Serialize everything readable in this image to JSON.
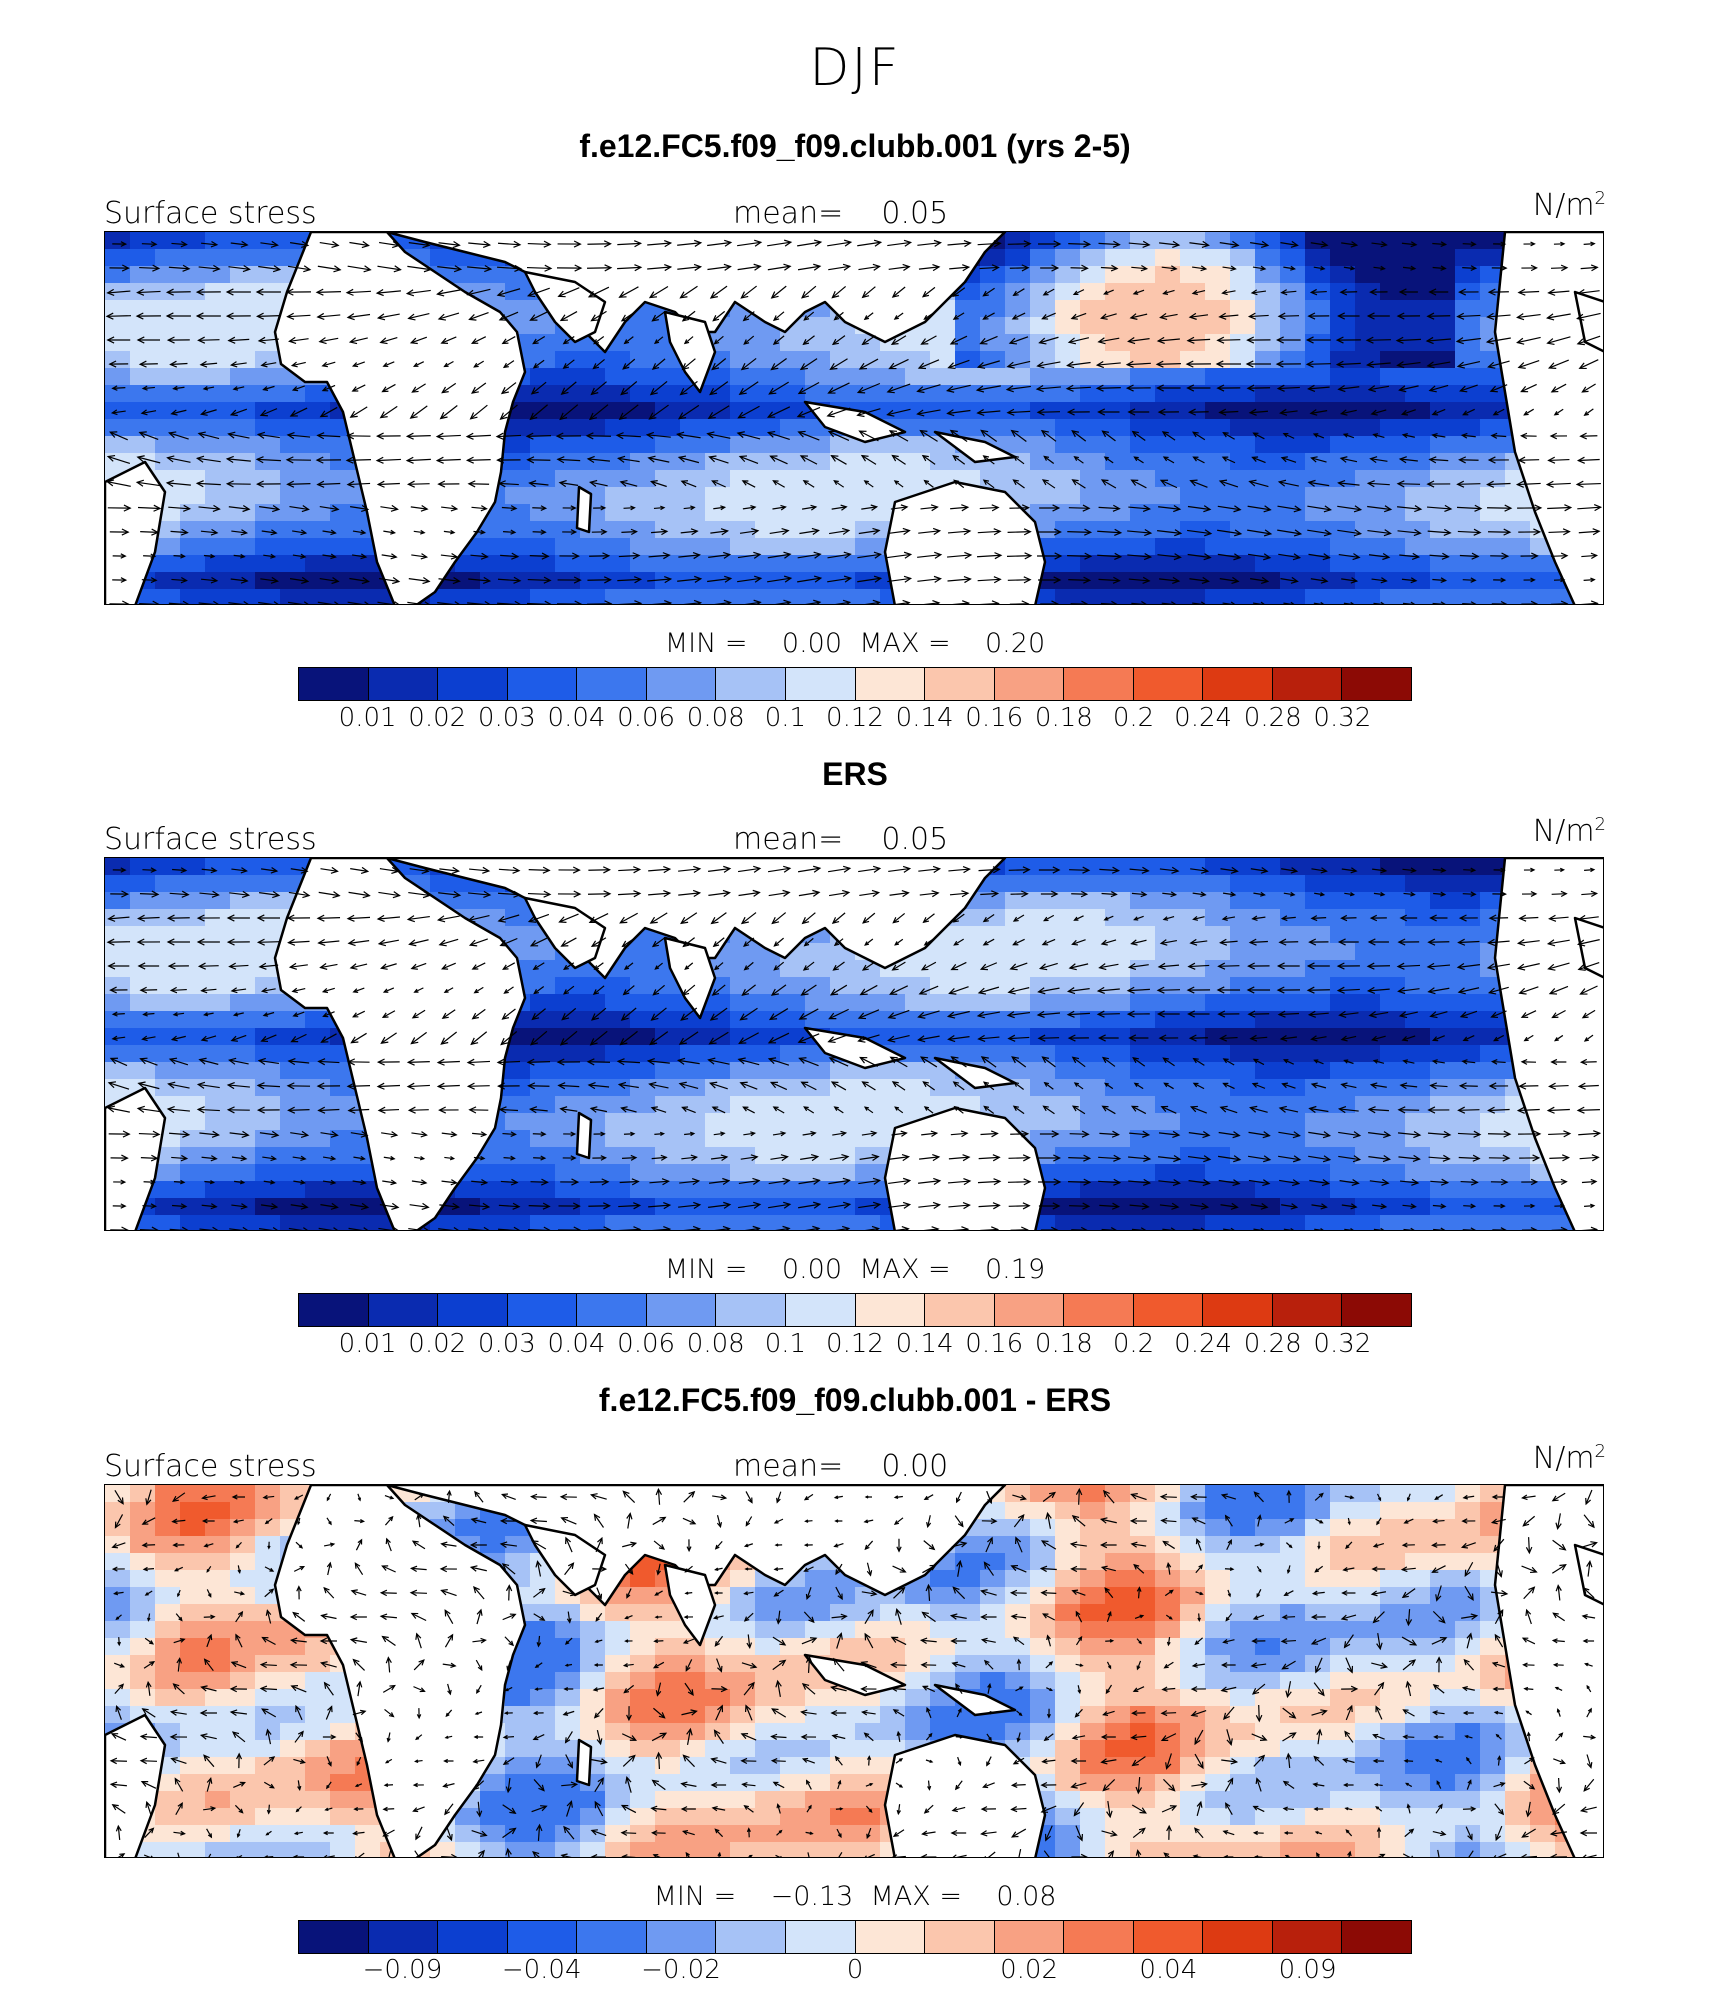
{
  "title": "DJF",
  "palette": [
    "#08137a",
    "#0a2bb0",
    "#0c3fd0",
    "#1e5ce8",
    "#3c77ee",
    "#6f9af2",
    "#a6c2f6",
    "#d3e4fa",
    "#fde6d6",
    "#fbc6ad",
    "#f8a183",
    "#f57a54",
    "#f05a2d",
    "#dd3a12",
    "#b8200c",
    "#8c0a05"
  ],
  "land_color": "#ffffff",
  "panels": [
    {
      "title": "f.e12.FC5.f09_f09.clubb.001 (yrs 2-5)",
      "variable": "Surface stress",
      "mean_label": "mean=",
      "mean_value": "0.05",
      "units": "N/m",
      "units_sup": "2",
      "min_label": "MIN =",
      "min_value": "0.00",
      "max_label": "MAX =",
      "max_value": "0.20",
      "colorbar_ticks": [
        "0.01",
        "0.02",
        "0.03",
        "0.04",
        "0.06",
        "0.08",
        "0.1",
        "0.12",
        "0.14",
        "0.16",
        "0.18",
        "0.2",
        "0.24",
        "0.28",
        "0.32"
      ]
    },
    {
      "title": "ERS",
      "variable": "Surface stress",
      "mean_label": "mean=",
      "mean_value": "0.05",
      "units": "N/m",
      "units_sup": "2",
      "min_label": "MIN =",
      "min_value": "0.00",
      "max_label": "MAX =",
      "max_value": "0.19",
      "colorbar_ticks": [
        "0.01",
        "0.02",
        "0.03",
        "0.04",
        "0.06",
        "0.08",
        "0.1",
        "0.12",
        "0.14",
        "0.16",
        "0.18",
        "0.2",
        "0.24",
        "0.28",
        "0.32"
      ]
    },
    {
      "title": "f.e12.FC5.f09_f09.clubb.001 - ERS",
      "variable": "Surface stress",
      "mean_label": "mean=",
      "mean_value": "0.00",
      "units": "N/m",
      "units_sup": "2",
      "min_label": "MIN =",
      "min_value": "−0.13",
      "max_label": "MAX =",
      "max_value": "0.08",
      "colorbar_ticks": [
        "−0.09",
        "−0.04",
        "−0.02",
        "0",
        "0.02",
        "0.04",
        "0.09"
      ]
    }
  ]
}
